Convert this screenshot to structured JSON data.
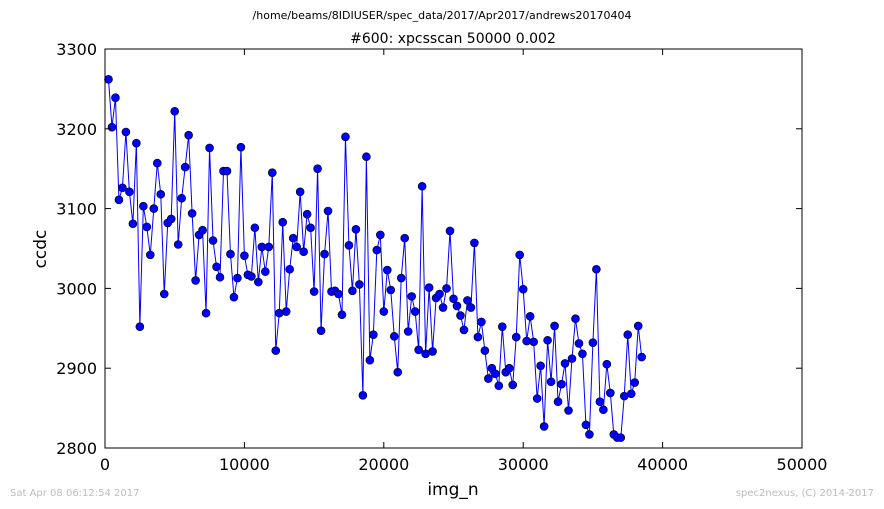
{
  "chart_data": {
    "type": "line",
    "supertitle": "/home/beams/8IDIUSER/spec_data/2017/Apr2017/andrews20170404",
    "title": "#600: xpcsscan 50000 0.002",
    "xlabel": "img_n",
    "ylabel": "ccdc",
    "xlim": [
      0,
      50000
    ],
    "ylim": [
      2800,
      3300
    ],
    "xticks": [
      0,
      10000,
      20000,
      30000,
      40000,
      50000
    ],
    "yticks": [
      2800,
      2900,
      3000,
      3100,
      3200,
      3300
    ],
    "grid": false,
    "line_color": "#0000ff",
    "marker_color": "#0000ff",
    "marker": "circle",
    "x_step": 250,
    "x_start": 250,
    "values": [
      3262,
      3202,
      3239,
      3111,
      3126,
      3196,
      3121,
      3081,
      3182,
      2952,
      3103,
      3077,
      3042,
      3100,
      3157,
      3118,
      2993,
      3082,
      3087,
      3222,
      3055,
      3113,
      3152,
      3192,
      3094,
      3010,
      3067,
      3073,
      2969,
      3176,
      3060,
      3027,
      3014,
      3147,
      3147,
      3043,
      2989,
      3013,
      3177,
      3041,
      3017,
      3015,
      3076,
      3008,
      3052,
      3021,
      3052,
      3145,
      2922,
      2969,
      3083,
      2971,
      3024,
      3063,
      3052,
      3121,
      3046,
      3093,
      3076,
      2996,
      3150,
      2947,
      3043,
      3097,
      2996,
      2997,
      2993,
      2967,
      3190,
      3054,
      2997,
      3074,
      3005,
      2866,
      3165,
      2910,
      2942,
      3048,
      3067,
      2971,
      3023,
      2998,
      2940,
      2895,
      3013,
      3063,
      2946,
      2990,
      2971,
      2923,
      3128,
      2918,
      3001,
      2921,
      2988,
      2993,
      2976,
      3000,
      3072,
      2987,
      2978,
      2966,
      2948,
      2985,
      2976,
      3057,
      2939,
      2958,
      2922,
      2887,
      2900,
      2893,
      2878,
      2952,
      2895,
      2900,
      2879,
      2939,
      3042,
      2999,
      2934,
      2965,
      2933,
      2862,
      2903,
      2827,
      2935,
      2883,
      2953,
      2858,
      2880,
      2906,
      2847,
      2912,
      2962,
      2931,
      2918,
      2829,
      2817,
      2932,
      3024,
      2858,
      2848,
      2905,
      2869,
      2817,
      2813,
      2813,
      2865,
      2942,
      2868,
      2882,
      2953,
      2914
    ]
  },
  "footer": {
    "left": "Sat Apr 08 06:12:54 2017",
    "right": "spec2nexus, (C) 2014-2017"
  }
}
